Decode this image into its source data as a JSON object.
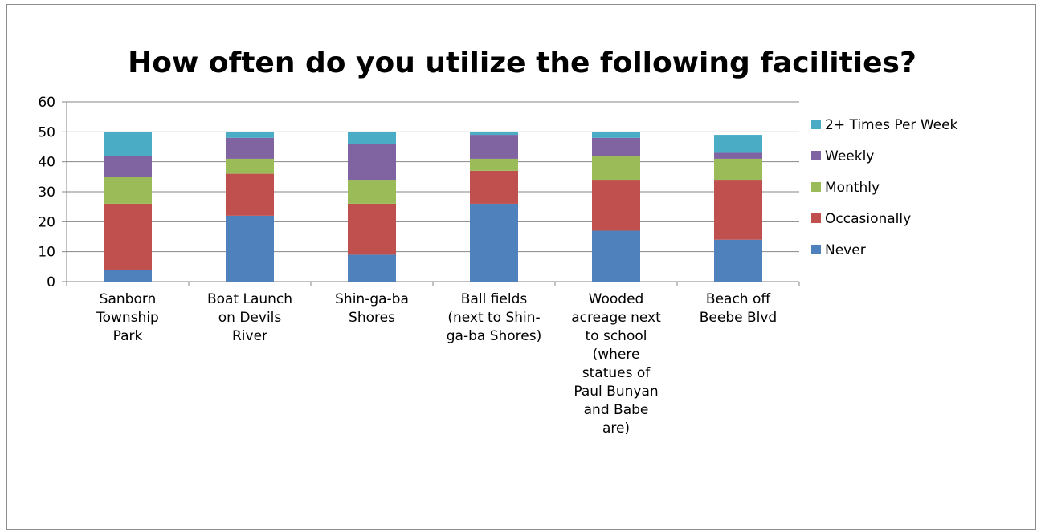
{
  "chart_data": {
    "type": "bar",
    "stacked": true,
    "title": "How often do you utilize the following facilities?",
    "xlabel": "",
    "ylabel": "",
    "ylim": [
      0,
      60
    ],
    "yticks": [
      0,
      10,
      20,
      30,
      40,
      50,
      60
    ],
    "grid": true,
    "legend_position": "right",
    "categories": [
      [
        "Sanborn",
        "Township",
        "Park"
      ],
      [
        "Boat Launch",
        "on Devils",
        "River"
      ],
      [
        "Shin-ga-ba",
        "Shores"
      ],
      [
        "Ball fields",
        "(next to Shin-",
        "ga-ba Shores)"
      ],
      [
        "Wooded",
        "acreage next",
        "to school",
        "(where",
        "statues of",
        "Paul Bunyan",
        "and Babe",
        "are)"
      ],
      [
        "Beach off",
        "Beebe Blvd"
      ]
    ],
    "series": [
      {
        "name": "Never",
        "color": "#4f81bd",
        "values": [
          4,
          22,
          9,
          26,
          17,
          14
        ]
      },
      {
        "name": "Occasionally",
        "color": "#c0504d",
        "values": [
          22,
          14,
          17,
          11,
          17,
          20
        ]
      },
      {
        "name": "Monthly",
        "color": "#9bbb59",
        "values": [
          9,
          5,
          8,
          4,
          8,
          7
        ]
      },
      {
        "name": "Weekly",
        "color": "#8064a2",
        "values": [
          7,
          7,
          12,
          8,
          6,
          2
        ]
      },
      {
        "name": "2+ Times Per Week",
        "color": "#4bacc6",
        "values": [
          8,
          2,
          4,
          1,
          2,
          6
        ]
      }
    ]
  }
}
